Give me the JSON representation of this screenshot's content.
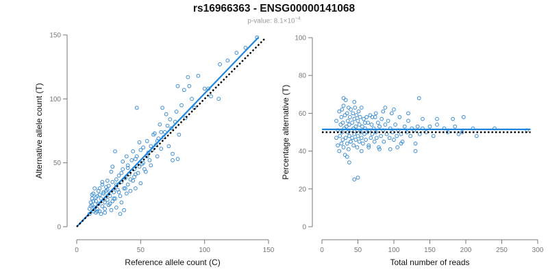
{
  "title": "rs16966363 - ENSG00000141068",
  "subtitle_prefix": "p-value: 8.1×10",
  "subtitle_exp": "−4",
  "colors": {
    "points": "#3a8ed4",
    "fit": "#1f86e0",
    "reference": "#000000",
    "axis": "#777777"
  },
  "chart_data": [
    {
      "type": "scatter",
      "title": "",
      "xlabel": "Reference allele count (C)",
      "ylabel": "Alternative allele count (T)",
      "xlim": [
        0,
        150
      ],
      "ylim": [
        0,
        150
      ],
      "xticks": [
        0,
        50,
        100,
        150
      ],
      "yticks": [
        0,
        50,
        100,
        150
      ],
      "fit_line": {
        "x": [
          0,
          142
        ],
        "y": [
          0,
          148
        ]
      },
      "reference_line": {
        "x": [
          0,
          147
        ],
        "y": [
          0,
          147
        ]
      },
      "points": [
        [
          10,
          10
        ],
        [
          10,
          14
        ],
        [
          11,
          19
        ],
        [
          12,
          17
        ],
        [
          12,
          22
        ],
        [
          13,
          12
        ],
        [
          13,
          26
        ],
        [
          14,
          15
        ],
        [
          15,
          20
        ],
        [
          15,
          11
        ],
        [
          16,
          24
        ],
        [
          16,
          14
        ],
        [
          17,
          18
        ],
        [
          18,
          30
        ],
        [
          18,
          12
        ],
        [
          19,
          22
        ],
        [
          20,
          16
        ],
        [
          20,
          33
        ],
        [
          21,
          26
        ],
        [
          22,
          19
        ],
        [
          22,
          14
        ],
        [
          23,
          28
        ],
        [
          24,
          21
        ],
        [
          25,
          32
        ],
        [
          25,
          17
        ],
        [
          26,
          24
        ],
        [
          27,
          13
        ],
        [
          28,
          35
        ],
        [
          28,
          20
        ],
        [
          29,
          27
        ],
        [
          30,
          22
        ],
        [
          31,
          33
        ],
        [
          31,
          15
        ],
        [
          32,
          29
        ],
        [
          33,
          40
        ],
        [
          34,
          24
        ],
        [
          35,
          35
        ],
        [
          35,
          19
        ],
        [
          36,
          45
        ],
        [
          37,
          30
        ],
        [
          38,
          38
        ],
        [
          39,
          26
        ],
        [
          40,
          48
        ],
        [
          40,
          33
        ],
        [
          41,
          41
        ],
        [
          42,
          28
        ],
        [
          43,
          52
        ],
        [
          44,
          36
        ],
        [
          45,
          45
        ],
        [
          45,
          39
        ],
        [
          46,
          30
        ],
        [
          47,
          55
        ],
        [
          48,
          42
        ],
        [
          49,
          47
        ],
        [
          50,
          34
        ],
        [
          50,
          60
        ],
        [
          52,
          50
        ],
        [
          54,
          43
        ],
        [
          55,
          67
        ],
        [
          56,
          58
        ],
        [
          58,
          48
        ],
        [
          60,
          72
        ],
        [
          62,
          64
        ],
        [
          63,
          55
        ],
        [
          65,
          80
        ],
        [
          66,
          61
        ],
        [
          68,
          70
        ],
        [
          70,
          88
        ],
        [
          72,
          63
        ],
        [
          74,
          77
        ],
        [
          75,
          52
        ],
        [
          77,
          82
        ],
        [
          78,
          90
        ],
        [
          80,
          72
        ],
        [
          82,
          95
        ],
        [
          85,
          85
        ],
        [
          88,
          110
        ],
        [
          90,
          100
        ],
        [
          92,
          93
        ],
        [
          95,
          118
        ],
        [
          100,
          108
        ],
        [
          105,
          102
        ],
        [
          112,
          127
        ],
        [
          118,
          130
        ],
        [
          125,
          136
        ],
        [
          132,
          140
        ],
        [
          141,
          148
        ],
        [
          47,
          93
        ],
        [
          67,
          93
        ],
        [
          79,
          110
        ],
        [
          84,
          107
        ],
        [
          87,
          117
        ],
        [
          103,
          108
        ],
        [
          111,
          100
        ],
        [
          75,
          57
        ],
        [
          79,
          53
        ],
        [
          34,
          10
        ],
        [
          37,
          13
        ],
        [
          58,
          63
        ],
        [
          64,
          69
        ],
        [
          69,
          74
        ],
        [
          30,
          59
        ],
        [
          28,
          47
        ],
        [
          52,
          62
        ],
        [
          61,
          73
        ],
        [
          20,
          35
        ],
        [
          24,
          36
        ],
        [
          14,
          30
        ],
        [
          12,
          25
        ],
        [
          17,
          28
        ],
        [
          22,
          11
        ],
        [
          26,
          18
        ],
        [
          19,
          10
        ],
        [
          29,
          22
        ],
        [
          33,
          27
        ],
        [
          38,
          30
        ],
        [
          42,
          37
        ],
        [
          46,
          41
        ],
        [
          53,
          45
        ],
        [
          57,
          52
        ],
        [
          44,
          59
        ],
        [
          49,
          66
        ],
        [
          36,
          51
        ],
        [
          39,
          55
        ],
        [
          27,
          43
        ],
        [
          23,
          31
        ],
        [
          21,
          27
        ],
        [
          15,
          23
        ],
        [
          11,
          16
        ],
        [
          13,
          20
        ],
        [
          16,
          12
        ],
        [
          18,
          25
        ],
        [
          24,
          29
        ],
        [
          31,
          37
        ],
        [
          35,
          42
        ],
        [
          40,
          46
        ],
        [
          46,
          53
        ],
        [
          51,
          49
        ],
        [
          55,
          55
        ],
        [
          59,
          60
        ],
        [
          63,
          67
        ],
        [
          66,
          74
        ],
        [
          71,
          79
        ],
        [
          73,
          84
        ]
      ]
    },
    {
      "type": "scatter",
      "title": "",
      "xlabel": "Total number of reads",
      "ylabel": "Percentage alternative (T)",
      "xlim": [
        0,
        300
      ],
      "ylim": [
        0,
        100
      ],
      "xticks": [
        0,
        50,
        100,
        150,
        200,
        250,
        300
      ],
      "yticks": [
        0,
        20,
        40,
        60,
        80,
        100
      ],
      "fit_line": {
        "x": [
          0,
          290
        ],
        "y": [
          51.5,
          51.5
        ]
      },
      "reference_line": {
        "x": [
          0,
          290
        ],
        "y": [
          50,
          50
        ]
      },
      "points": [
        [
          20,
          47
        ],
        [
          20,
          56
        ],
        [
          22,
          43
        ],
        [
          22,
          51
        ],
        [
          24,
          40
        ],
        [
          24,
          61
        ],
        [
          25,
          48
        ],
        [
          26,
          54
        ],
        [
          27,
          44
        ],
        [
          27,
          58
        ],
        [
          28,
          62
        ],
        [
          28,
          50
        ],
        [
          29,
          46
        ],
        [
          29,
          55
        ],
        [
          30,
          64
        ],
        [
          30,
          42
        ],
        [
          31,
          52
        ],
        [
          32,
          59
        ],
        [
          32,
          38
        ],
        [
          33,
          47
        ],
        [
          33,
          67
        ],
        [
          34,
          53
        ],
        [
          35,
          44
        ],
        [
          35,
          60
        ],
        [
          36,
          50
        ],
        [
          36,
          56
        ],
        [
          37,
          41
        ],
        [
          37,
          63
        ],
        [
          38,
          48
        ],
        [
          38,
          54
        ],
        [
          39,
          58
        ],
        [
          40,
          45
        ],
        [
          40,
          62
        ],
        [
          41,
          51
        ],
        [
          42,
          47
        ],
        [
          42,
          55
        ],
        [
          43,
          60
        ],
        [
          44,
          43
        ],
        [
          44,
          52
        ],
        [
          45,
          57
        ],
        [
          45,
          49
        ],
        [
          46,
          63
        ],
        [
          47,
          46
        ],
        [
          47,
          53
        ],
        [
          48,
          59
        ],
        [
          49,
          42
        ],
        [
          49,
          51
        ],
        [
          50,
          56
        ],
        [
          50,
          48
        ],
        [
          51,
          61
        ],
        [
          52,
          45
        ],
        [
          52,
          54
        ],
        [
          53,
          58
        ],
        [
          54,
          50
        ],
        [
          55,
          47
        ],
        [
          55,
          63
        ],
        [
          56,
          53
        ],
        [
          57,
          44
        ],
        [
          58,
          57
        ],
        [
          59,
          49
        ],
        [
          60,
          52
        ],
        [
          61,
          46
        ],
        [
          62,
          58
        ],
        [
          63,
          50
        ],
        [
          64,
          55
        ],
        [
          65,
          43
        ],
        [
          66,
          51
        ],
        [
          67,
          59
        ],
        [
          68,
          47
        ],
        [
          69,
          54
        ],
        [
          70,
          49
        ],
        [
          72,
          52
        ],
        [
          73,
          45
        ],
        [
          74,
          58
        ],
        [
          75,
          50
        ],
        [
          76,
          47
        ],
        [
          78,
          55
        ],
        [
          79,
          42
        ],
        [
          80,
          53
        ],
        [
          82,
          48
        ],
        [
          83,
          57
        ],
        [
          85,
          51
        ],
        [
          86,
          45
        ],
        [
          88,
          54
        ],
        [
          90,
          49
        ],
        [
          92,
          56
        ],
        [
          94,
          47
        ],
        [
          95,
          52
        ],
        [
          97,
          60
        ],
        [
          98,
          50
        ],
        [
          100,
          46
        ],
        [
          102,
          54
        ],
        [
          104,
          48
        ],
        [
          106,
          51
        ],
        [
          108,
          58
        ],
        [
          110,
          49
        ],
        [
          112,
          45
        ],
        [
          115,
          53
        ],
        [
          118,
          50
        ],
        [
          120,
          56
        ],
        [
          123,
          48
        ],
        [
          125,
          52
        ],
        [
          128,
          51
        ],
        [
          130,
          44
        ],
        [
          133,
          53
        ],
        [
          136,
          49
        ],
        [
          140,
          52
        ],
        [
          145,
          50
        ],
        [
          150,
          53
        ],
        [
          155,
          48
        ],
        [
          160,
          54
        ],
        [
          170,
          52
        ],
        [
          175,
          50
        ],
        [
          185,
          53
        ],
        [
          190,
          49
        ],
        [
          195,
          50
        ],
        [
          210,
          52
        ],
        [
          215,
          48
        ],
        [
          240,
          52
        ],
        [
          285,
          51
        ],
        [
          45,
          25
        ],
        [
          50,
          26
        ],
        [
          35,
          37
        ],
        [
          38,
          34
        ],
        [
          135,
          68
        ],
        [
          182,
          57
        ],
        [
          197,
          58
        ],
        [
          160,
          57
        ],
        [
          88,
          63
        ],
        [
          100,
          62
        ],
        [
          75,
          60
        ],
        [
          70,
          58
        ],
        [
          120,
          60
        ],
        [
          140,
          57
        ],
        [
          60,
          55
        ],
        [
          85,
          61
        ],
        [
          110,
          44
        ],
        [
          105,
          42
        ],
        [
          130,
          40
        ],
        [
          95,
          41
        ],
        [
          80,
          41
        ],
        [
          65,
          42
        ],
        [
          55,
          40
        ],
        [
          40,
          45
        ],
        [
          45,
          66
        ],
        [
          30,
          68
        ]
      ]
    }
  ]
}
